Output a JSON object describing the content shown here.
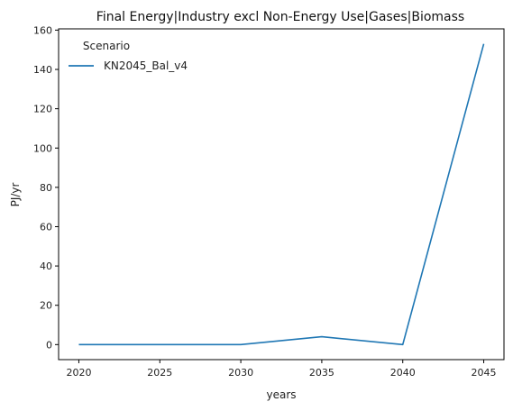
{
  "chart_data": {
    "type": "line",
    "title": "Final Energy|Industry excl Non-Energy Use|Gases|Biomass",
    "xlabel": "years",
    "ylabel": "PJ/yr",
    "x": [
      2020,
      2025,
      2030,
      2035,
      2040,
      2045
    ],
    "xticks": [
      "2020",
      "2025",
      "2030",
      "2035",
      "2040",
      "2045"
    ],
    "yticks": [
      "0",
      "20",
      "40",
      "60",
      "80",
      "100",
      "120",
      "140",
      "160"
    ],
    "ylim": [
      -7.65,
      160.65
    ],
    "xlim": [
      2018.75,
      2046.25
    ],
    "grid": false,
    "legend": {
      "title": "Scenario",
      "placement": "top-left"
    },
    "series": [
      {
        "name": "KN2045_Bal_v4",
        "color": "#1f77b4",
        "values": [
          0,
          0,
          0,
          4,
          0,
          153
        ]
      }
    ]
  }
}
